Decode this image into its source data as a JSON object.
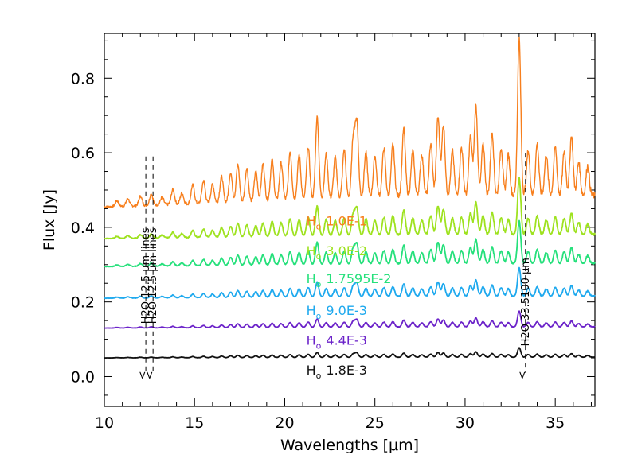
{
  "chart_data": {
    "type": "line",
    "xlabel": "Wavelengths [μm]",
    "ylabel": "Flux [Jy]",
    "xlim": [
      10,
      37.2
    ],
    "ylim": [
      -0.08,
      0.92
    ],
    "xticks": [
      10,
      15,
      20,
      25,
      30,
      35
    ],
    "yticks": [
      0.0,
      0.2,
      0.4,
      0.6,
      0.8
    ],
    "ytick_labels": [
      "0.0",
      "0.2",
      "0.4",
      "0.6",
      "0.8"
    ],
    "grid": false,
    "series": [
      {
        "label_prefix": "H",
        "label_sub": "o",
        "label_value": "1.0E-1",
        "color": "#f77f1d",
        "baseline": 0.455,
        "amplitude": 1.0,
        "label_x": 21.2,
        "label_y": 0.405
      },
      {
        "label_prefix": "H",
        "label_sub": "o",
        "label_value": "3.0E-2",
        "color": "#9ee21f",
        "baseline": 0.37,
        "amplitude": 0.36,
        "label_x": 21.2,
        "label_y": 0.325
      },
      {
        "label_prefix": "H",
        "label_sub": "o",
        "label_value": "1.7595E-2",
        "color": "#25e07b",
        "baseline": 0.295,
        "amplitude": 0.27,
        "label_x": 21.2,
        "label_y": 0.25
      },
      {
        "label_prefix": "H",
        "label_sub": "o",
        "label_value": "9.0E-3",
        "color": "#1ea9ee",
        "baseline": 0.21,
        "amplitude": 0.18,
        "label_x": 21.2,
        "label_y": 0.165
      },
      {
        "label_prefix": "H",
        "label_sub": "o",
        "label_value": "4.4E-3",
        "color": "#6b22c9",
        "baseline": 0.13,
        "amplitude": 0.1,
        "label_x": 21.2,
        "label_y": 0.085
      },
      {
        "label_prefix": "H",
        "label_sub": "o",
        "label_value": "1.8E-3",
        "color": "#111111",
        "baseline": 0.05,
        "amplitude": 0.06,
        "label_x": 21.2,
        "label_y": 0.005
      }
    ],
    "peaks": [
      [
        10.7,
        0.015
      ],
      [
        11.3,
        0.02
      ],
      [
        12.0,
        0.025
      ],
      [
        12.6,
        0.03
      ],
      [
        13.2,
        0.02
      ],
      [
        13.8,
        0.04
      ],
      [
        14.3,
        0.03
      ],
      [
        14.9,
        0.05
      ],
      [
        15.5,
        0.06
      ],
      [
        16.0,
        0.05
      ],
      [
        16.5,
        0.07
      ],
      [
        17.0,
        0.08
      ],
      [
        17.4,
        0.1
      ],
      [
        17.9,
        0.09
      ],
      [
        18.4,
        0.08
      ],
      [
        18.8,
        0.1
      ],
      [
        19.3,
        0.11
      ],
      [
        19.8,
        0.1
      ],
      [
        20.3,
        0.13
      ],
      [
        20.8,
        0.12
      ],
      [
        21.3,
        0.14
      ],
      [
        21.8,
        0.22
      ],
      [
        22.3,
        0.12
      ],
      [
        22.8,
        0.11
      ],
      [
        23.3,
        0.13
      ],
      [
        23.8,
        0.16
      ],
      [
        24.0,
        0.2
      ],
      [
        24.5,
        0.12
      ],
      [
        25.0,
        0.11
      ],
      [
        25.5,
        0.13
      ],
      [
        26.0,
        0.14
      ],
      [
        26.6,
        0.18
      ],
      [
        27.1,
        0.12
      ],
      [
        27.6,
        0.11
      ],
      [
        28.1,
        0.14
      ],
      [
        28.5,
        0.21
      ],
      [
        28.8,
        0.19
      ],
      [
        29.3,
        0.12
      ],
      [
        29.8,
        0.13
      ],
      [
        30.3,
        0.16
      ],
      [
        30.6,
        0.24
      ],
      [
        31.0,
        0.14
      ],
      [
        31.5,
        0.17
      ],
      [
        32.0,
        0.13
      ],
      [
        32.4,
        0.11
      ],
      [
        33.0,
        0.42
      ],
      [
        33.5,
        0.12
      ],
      [
        34.0,
        0.14
      ],
      [
        34.5,
        0.11
      ],
      [
        35.0,
        0.13
      ],
      [
        35.5,
        0.12
      ],
      [
        35.9,
        0.16
      ],
      [
        36.3,
        0.09
      ],
      [
        36.8,
        0.08
      ]
    ],
    "markers": [
      {
        "x": 12.3,
        "text": "H2O 12.5 μm lines"
      },
      {
        "x": 12.7,
        "text": "H2O 12.5 μm lines"
      },
      {
        "x": 33.35,
        "text": "H2O 33.5100 μm"
      }
    ],
    "marker_arrow": "<"
  }
}
